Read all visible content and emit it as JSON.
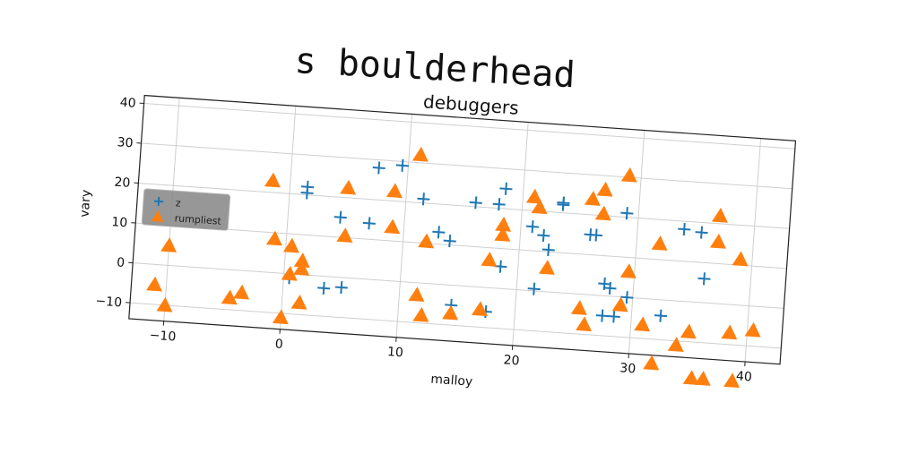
{
  "page_title": "s boulderhead",
  "chart_data": {
    "type": "scatter",
    "title": "debuggers",
    "xlabel": "malloy",
    "ylabel": "vary",
    "xlim": [
      -13,
      43
    ],
    "ylim": [
      -14,
      42
    ],
    "xticks": [
      -10,
      0,
      10,
      20,
      30,
      40
    ],
    "yticks": [
      -10,
      0,
      10,
      20,
      30,
      40
    ],
    "tick_labels_x": [
      "−10",
      "0",
      "10",
      "20",
      "30",
      "40"
    ],
    "tick_labels_y": [
      "−10",
      "0",
      "10",
      "20",
      "30",
      "40"
    ],
    "grid": true,
    "legend_position": "center-left",
    "series": [
      {
        "name": "z",
        "marker": "plus",
        "color": "#1f77b4",
        "points": [
          [
            7.5,
            28
          ],
          [
            9.5,
            29
          ],
          [
            1.5,
            20.5
          ],
          [
            1.5,
            22
          ],
          [
            11.5,
            21
          ],
          [
            4.5,
            15
          ],
          [
            7,
            14
          ],
          [
            13,
            13
          ],
          [
            14,
            11
          ],
          [
            16,
            21
          ],
          [
            18,
            21
          ],
          [
            18.5,
            25
          ],
          [
            21,
            16
          ],
          [
            22,
            14
          ],
          [
            22.5,
            10.5
          ],
          [
            23.5,
            22.5
          ],
          [
            23.5,
            22
          ],
          [
            26.5,
            15
          ],
          [
            26,
            15
          ],
          [
            27.5,
            3
          ],
          [
            28,
            2
          ],
          [
            29,
            21
          ],
          [
            34,
            18
          ],
          [
            35.5,
            17.5
          ],
          [
            36,
            6
          ],
          [
            21.5,
            0.5
          ],
          [
            0.5,
            -1
          ],
          [
            3.5,
            -3
          ],
          [
            5,
            -2.5
          ],
          [
            14.5,
            -5
          ],
          [
            17.5,
            -6
          ],
          [
            18.5,
            5.5
          ],
          [
            27.5,
            -5
          ],
          [
            28.5,
            -5
          ],
          [
            29.5,
            0
          ],
          [
            32.5,
            -4
          ]
        ]
      },
      {
        "name": "rumpliest",
        "marker": "triangle",
        "color": "#ff7f0e",
        "points": [
          [
            -10,
            5
          ],
          [
            -11,
            -5
          ],
          [
            -10,
            -10
          ],
          [
            -4.5,
            -7
          ],
          [
            -3.5,
            -5.5
          ],
          [
            -1.5,
            23
          ],
          [
            -1,
            8.5
          ],
          [
            0,
            -11
          ],
          [
            0.5,
            7
          ],
          [
            0.5,
            0
          ],
          [
            1.5,
            1.5
          ],
          [
            1.5,
            3.5
          ],
          [
            1.5,
            -7
          ],
          [
            5,
            10.5
          ],
          [
            5,
            22.5
          ],
          [
            9,
            22.5
          ],
          [
            9,
            13.5
          ],
          [
            11,
            32
          ],
          [
            11.5,
            -3
          ],
          [
            12,
            10.5
          ],
          [
            12,
            -8
          ],
          [
            14.5,
            -7
          ],
          [
            17,
            -5.5
          ],
          [
            17.5,
            7
          ],
          [
            18.5,
            13.5
          ],
          [
            18.5,
            16
          ],
          [
            21,
            23.5
          ],
          [
            21.5,
            21
          ],
          [
            22.5,
            6
          ],
          [
            25.5,
            -3.5
          ],
          [
            26,
            24
          ],
          [
            26,
            -7.5
          ],
          [
            27,
            26.5
          ],
          [
            27,
            20.5
          ],
          [
            29,
            30.5
          ],
          [
            29.5,
            6.5
          ],
          [
            29,
            -2
          ],
          [
            31,
            -6.5
          ],
          [
            32,
            14
          ],
          [
            32,
            -16
          ],
          [
            34,
            -11
          ],
          [
            35,
            -7.5
          ],
          [
            35.5,
            -19
          ],
          [
            36.5,
            -19
          ],
          [
            37,
            15.5
          ],
          [
            37,
            22
          ],
          [
            38.5,
            -7
          ],
          [
            39,
            11.5
          ],
          [
            39,
            -19
          ],
          [
            40.5,
            -6
          ]
        ]
      }
    ]
  }
}
